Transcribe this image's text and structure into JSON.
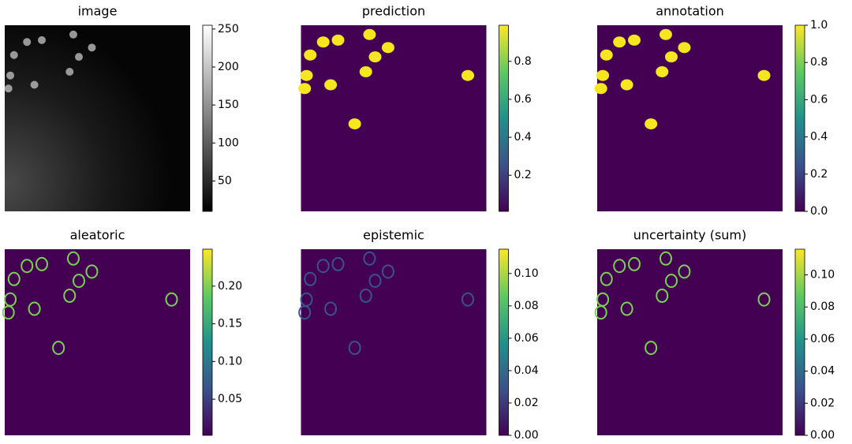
{
  "chart_data": [
    {
      "type": "heatmap",
      "title": "image",
      "colormap": "gray",
      "clim": [
        10,
        255
      ],
      "cticks": [
        50,
        100,
        150,
        200,
        250
      ]
    },
    {
      "type": "heatmap",
      "title": "prediction",
      "colormap": "viridis",
      "clim": [
        0.01,
        0.99
      ],
      "cticks": [
        0.2,
        0.4,
        0.6,
        0.8
      ]
    },
    {
      "type": "heatmap",
      "title": "annotation",
      "colormap": "viridis",
      "clim": [
        0,
        1
      ],
      "cticks": [
        {
          "value": 0,
          "label": "0.0"
        },
        0.2,
        0.4,
        0.6,
        0.8,
        {
          "value": 1,
          "label": "1.0"
        }
      ]
    },
    {
      "type": "heatmap",
      "title": "aleatoric",
      "colormap": "viridis",
      "clim": [
        0.002,
        0.249
      ],
      "cticks": [
        0.05,
        {
          "value": 0.1,
          "label": "0.10"
        },
        0.15,
        {
          "value": 0.2,
          "label": "0.20"
        }
      ]
    },
    {
      "type": "heatmap",
      "title": "epistemic",
      "colormap": "viridis",
      "clim": [
        0,
        0.115
      ],
      "cticks": [
        {
          "value": 0,
          "label": "0.00"
        },
        0.02,
        0.04,
        0.06,
        0.08,
        {
          "value": 0.1,
          "label": "0.10"
        }
      ]
    },
    {
      "type": "heatmap",
      "title": "uncertainty (sum)",
      "colormap": "viridis",
      "clim": [
        0,
        0.116
      ],
      "cticks": [
        {
          "value": 0,
          "label": "0.00"
        },
        0.02,
        0.04,
        0.06,
        0.08,
        {
          "value": 0.1,
          "label": "0.10"
        }
      ]
    }
  ]
}
